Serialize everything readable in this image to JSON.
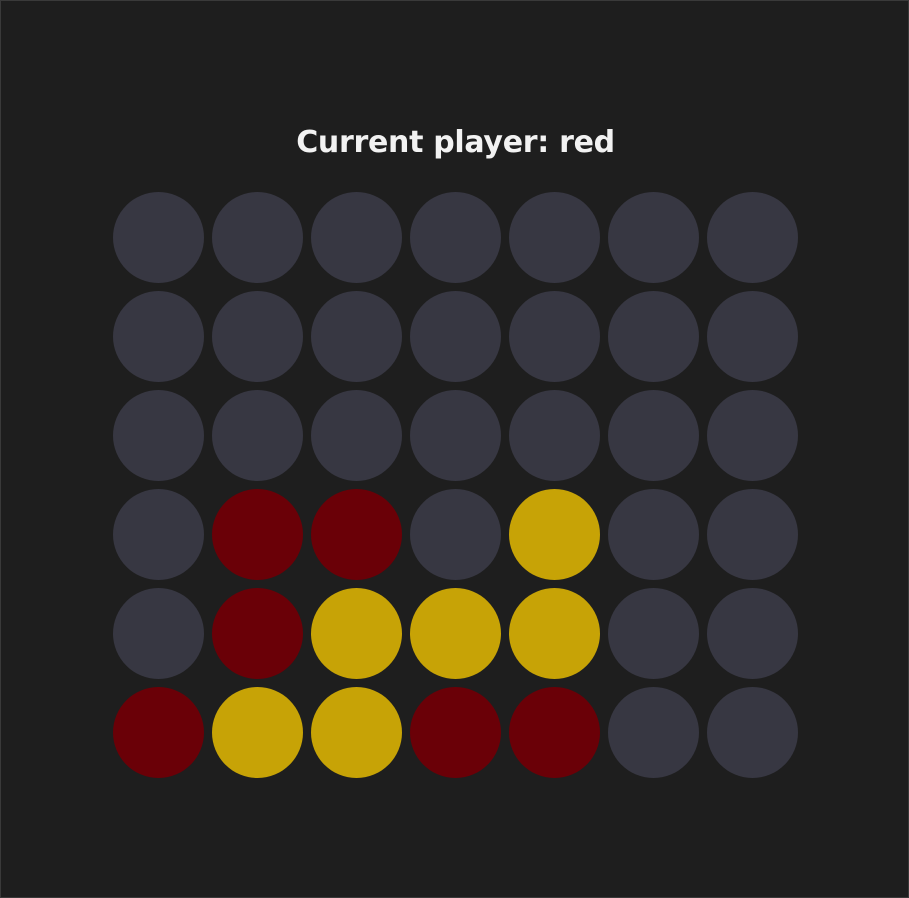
{
  "status": {
    "text": "Current player: red",
    "current_player": "red"
  },
  "board": {
    "rows": 6,
    "columns": 7,
    "grid": [
      [
        "empty",
        "empty",
        "empty",
        "empty",
        "empty",
        "empty",
        "empty"
      ],
      [
        "empty",
        "empty",
        "empty",
        "empty",
        "empty",
        "empty",
        "empty"
      ],
      [
        "empty",
        "empty",
        "empty",
        "empty",
        "empty",
        "empty",
        "empty"
      ],
      [
        "empty",
        "red",
        "red",
        "empty",
        "yellow",
        "empty",
        "empty"
      ],
      [
        "empty",
        "red",
        "yellow",
        "yellow",
        "yellow",
        "empty",
        "empty"
      ],
      [
        "red",
        "yellow",
        "yellow",
        "red",
        "red",
        "empty",
        "empty"
      ]
    ]
  },
  "colors": {
    "background": "#1e1e1e",
    "empty": "#373742",
    "red": "#6a0007",
    "yellow": "#c7a306",
    "text": "#f2f2f2"
  }
}
